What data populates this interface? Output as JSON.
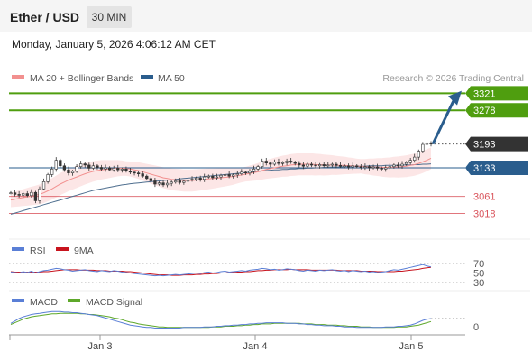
{
  "header": {
    "title": "Ether / USD",
    "timeframe": "30 MIN",
    "datetime": "Monday, January 5, 2026 4:06:12 AM CET"
  },
  "legend": {
    "ma20_label": "MA 20 + Bollinger Bands",
    "ma50_label": "MA 50",
    "copyright": "Research © 2026 Trading Central"
  },
  "colors": {
    "resistance": "#4f9e0f",
    "support": "#d9535b",
    "pivot": "#2a5d8d",
    "current": "#333333",
    "candle": "#333333",
    "ma20": "#f2908f",
    "ma50": "#4f6f8f",
    "band_fill": "#fbdcdc",
    "rsi": "#5a7fd6",
    "rsi_ma": "#c8141e",
    "macd": "#5a7fd6",
    "macd_signal": "#5ea82a",
    "arrow": "#2a5d8d"
  },
  "chart_data": [
    {
      "type": "candlestick",
      "ylim": [
        2960,
        3340
      ],
      "x_ticks": [
        "Jan 3",
        "Jan 4",
        "Jan 5"
      ],
      "levels": [
        {
          "label": "3321",
          "value": 3321,
          "kind": "resistance"
        },
        {
          "label": "3278",
          "value": 3278,
          "kind": "resistance"
        },
        {
          "label": "3193",
          "value": 3193,
          "kind": "current"
        },
        {
          "label": "3133",
          "value": 3133,
          "kind": "pivot"
        },
        {
          "label": "3061",
          "value": 3061,
          "kind": "support"
        },
        {
          "label": "3018",
          "value": 3018,
          "kind": "support"
        }
      ],
      "close": [
        3070,
        3066,
        3064,
        3068,
        3063,
        3071,
        3050,
        3080,
        3098,
        3116,
        3130,
        3152,
        3138,
        3128,
        3120,
        3124,
        3136,
        3143,
        3140,
        3132,
        3138,
        3134,
        3130,
        3133,
        3128,
        3132,
        3128,
        3130,
        3125,
        3122,
        3120,
        3118,
        3112,
        3106,
        3100,
        3092,
        3095,
        3090,
        3094,
        3097,
        3100,
        3096,
        3099,
        3102,
        3104,
        3107,
        3104,
        3110,
        3112,
        3108,
        3110,
        3114,
        3116,
        3112,
        3115,
        3118,
        3122,
        3120,
        3124,
        3130,
        3136,
        3150,
        3145,
        3142,
        3148,
        3144,
        3146,
        3150,
        3147,
        3144,
        3140,
        3137,
        3142,
        3140,
        3138,
        3141,
        3138,
        3140,
        3142,
        3139,
        3137,
        3138,
        3135,
        3138,
        3136,
        3134,
        3136,
        3133,
        3135,
        3132,
        3130,
        3133,
        3136,
        3140,
        3138,
        3142,
        3146,
        3152,
        3160,
        3175,
        3192,
        3196,
        3193
      ],
      "ma20": [
        3052,
        3054,
        3056,
        3058,
        3060,
        3062,
        3064,
        3066,
        3070,
        3075,
        3080,
        3086,
        3092,
        3097,
        3102,
        3106,
        3110,
        3114,
        3118,
        3121,
        3124,
        3126,
        3128,
        3129,
        3130,
        3131,
        3132,
        3132,
        3131,
        3130,
        3128,
        3126,
        3123,
        3120,
        3117,
        3114,
        3111,
        3108,
        3106,
        3104,
        3103,
        3102,
        3101,
        3101,
        3101,
        3102,
        3103,
        3104,
        3105,
        3106,
        3107,
        3108,
        3109,
        3110,
        3111,
        3113,
        3115,
        3117,
        3119,
        3121,
        3123,
        3126,
        3129,
        3131,
        3133,
        3135,
        3137,
        3138,
        3140,
        3141,
        3142,
        3142,
        3142,
        3142,
        3141,
        3141,
        3140,
        3140,
        3140,
        3139,
        3139,
        3139,
        3138,
        3138,
        3137,
        3137,
        3136,
        3136,
        3135,
        3135,
        3134,
        3134,
        3134,
        3135,
        3135,
        3136,
        3137,
        3139,
        3141,
        3144,
        3148,
        3152,
        3157
      ],
      "ma50": [
        3016,
        3019,
        3022,
        3025,
        3028,
        3031,
        3034,
        3037,
        3040,
        3043,
        3046,
        3049,
        3052,
        3055,
        3058,
        3061,
        3064,
        3067,
        3070,
        3073,
        3076,
        3078,
        3080,
        3082,
        3084,
        3086,
        3088,
        3090,
        3091,
        3093,
        3094,
        3095,
        3096,
        3097,
        3098,
        3099,
        3100,
        3101,
        3102,
        3103,
        3104,
        3105,
        3106,
        3107,
        3108,
        3109,
        3110,
        3111,
        3112,
        3113,
        3114,
        3115,
        3116,
        3117,
        3118,
        3119,
        3120,
        3121,
        3122,
        3123,
        3124,
        3125,
        3126,
        3127,
        3128,
        3128,
        3129,
        3129,
        3130,
        3130,
        3131,
        3131,
        3132,
        3132,
        3133,
        3133,
        3134,
        3134,
        3135,
        3135,
        3135,
        3136,
        3136,
        3136,
        3137,
        3137,
        3137,
        3138,
        3138,
        3138,
        3138,
        3139,
        3139,
        3139,
        3139,
        3140,
        3140,
        3140,
        3141,
        3141,
        3142,
        3142,
        3143
      ]
    },
    {
      "type": "line",
      "ylim": [
        24,
        80
      ],
      "y_ticks": [
        "70",
        "50",
        "30"
      ],
      "series": [
        {
          "name": "RSI",
          "values": [
            52,
            51,
            50,
            53,
            51,
            54,
            50,
            53,
            55,
            56,
            58,
            60,
            59,
            57,
            56,
            54,
            55,
            56,
            57,
            55,
            54,
            53,
            55,
            54,
            53,
            55,
            54,
            52,
            51,
            50,
            49,
            48,
            47,
            46,
            45,
            44,
            45,
            44,
            45,
            46,
            47,
            46,
            47,
            48,
            49,
            50,
            49,
            51,
            52,
            50,
            51,
            53,
            54,
            52,
            53,
            54,
            55,
            54,
            56,
            57,
            58,
            60,
            59,
            57,
            58,
            56,
            57,
            59,
            58,
            57,
            55,
            54,
            56,
            55,
            54,
            56,
            55,
            56,
            57,
            55,
            54,
            55,
            53,
            55,
            54,
            53,
            54,
            52,
            53,
            51,
            52,
            53,
            55,
            57,
            56,
            58,
            60,
            62,
            64,
            66,
            68,
            65,
            63
          ]
        },
        {
          "name": "9MA",
          "values": [
            53,
            52,
            52,
            52,
            52,
            52,
            52,
            52,
            53,
            53,
            54,
            55,
            56,
            57,
            57,
            57,
            57,
            56,
            56,
            56,
            56,
            55,
            55,
            55,
            54,
            54,
            54,
            54,
            53,
            53,
            52,
            51,
            50,
            49,
            48,
            47,
            46,
            46,
            46,
            45,
            45,
            45,
            46,
            46,
            46,
            47,
            47,
            48,
            48,
            49,
            49,
            50,
            50,
            51,
            51,
            52,
            52,
            53,
            53,
            54,
            55,
            55,
            56,
            56,
            57,
            57,
            57,
            57,
            58,
            57,
            57,
            57,
            57,
            56,
            56,
            56,
            56,
            56,
            56,
            56,
            55,
            55,
            55,
            55,
            55,
            54,
            54,
            54,
            54,
            53,
            53,
            53,
            53,
            53,
            54,
            54,
            55,
            56,
            57,
            58,
            60,
            61,
            62
          ]
        }
      ]
    },
    {
      "type": "line",
      "ylim": [
        -12,
        34
      ],
      "y_ticks": [
        "0"
      ],
      "series": [
        {
          "name": "MACD",
          "values": [
            6,
            10,
            14,
            17,
            19,
            21,
            22,
            23,
            24,
            25,
            26,
            26,
            26,
            25,
            25,
            24,
            24,
            23,
            22,
            21,
            20,
            19,
            17,
            15,
            13,
            11,
            9,
            7,
            5,
            3,
            2,
            1,
            0,
            -1,
            -1,
            -2,
            -2,
            -2,
            -2,
            -2,
            -2,
            -2,
            -1,
            -1,
            -1,
            -1,
            -1,
            0,
            0,
            0,
            1,
            1,
            2,
            2,
            3,
            3,
            4,
            4,
            5,
            5,
            6,
            6,
            7,
            7,
            7,
            7,
            7,
            6,
            6,
            6,
            5,
            5,
            4,
            4,
            3,
            3,
            2,
            2,
            2,
            1,
            1,
            0,
            0,
            0,
            -1,
            -1,
            -1,
            -1,
            -1,
            -1,
            -1,
            0,
            0,
            0,
            1,
            1,
            2,
            3,
            5,
            8,
            11,
            13,
            14
          ]
        },
        {
          "name": "MACD Signal",
          "values": [
            4,
            7,
            10,
            13,
            15,
            17,
            18,
            19,
            20,
            21,
            22,
            22,
            23,
            23,
            23,
            23,
            23,
            22,
            22,
            21,
            21,
            20,
            19,
            18,
            17,
            15,
            14,
            12,
            10,
            8,
            7,
            5,
            4,
            3,
            2,
            1,
            0,
            0,
            -1,
            -1,
            -1,
            -1,
            -1,
            -1,
            -1,
            -1,
            -1,
            -1,
            -1,
            0,
            0,
            0,
            1,
            1,
            1,
            2,
            2,
            3,
            3,
            4,
            4,
            5,
            5,
            5,
            6,
            6,
            6,
            6,
            6,
            6,
            6,
            5,
            5,
            5,
            4,
            4,
            4,
            3,
            3,
            3,
            2,
            2,
            1,
            1,
            1,
            0,
            0,
            0,
            -1,
            -1,
            -1,
            -1,
            -1,
            -1,
            0,
            0,
            0,
            1,
            2,
            3,
            5,
            7,
            9
          ]
        }
      ]
    }
  ]
}
